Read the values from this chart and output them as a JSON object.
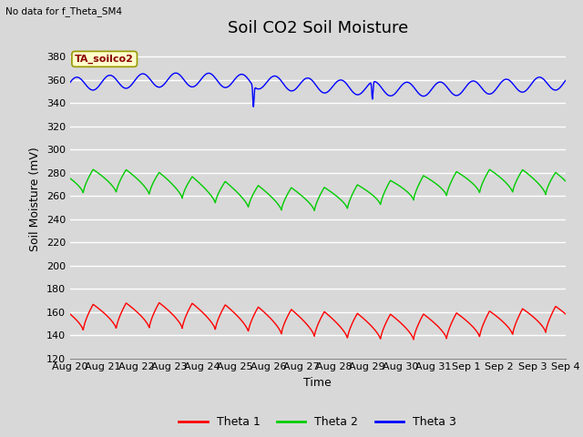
{
  "title": "Soil CO2 Soil Moisture",
  "no_data_text": "No data for f_Theta_SM4",
  "annotation_text": "TA_soilco2",
  "ylabel": "Soil Moisture (mV)",
  "xlabel": "Time",
  "ylim": [
    120,
    395
  ],
  "yticks": [
    120,
    140,
    160,
    180,
    200,
    220,
    240,
    260,
    280,
    300,
    320,
    340,
    360,
    380
  ],
  "x_tick_labels": [
    "Aug 20",
    "Aug 21",
    "Aug 22",
    "Aug 23",
    "Aug 24",
    "Aug 25",
    "Aug 26",
    "Aug 27",
    "Aug 28",
    "Aug 29",
    "Aug 30",
    "Aug 31",
    "Sep 1",
    "Sep 2",
    "Sep 3",
    "Sep 4"
  ],
  "background_color": "#d8d8d8",
  "plot_bg_color": "#d8d8d8",
  "grid_color": "#ffffff",
  "colors": {
    "theta1": "#ff0000",
    "theta2": "#00cc00",
    "theta3": "#0000ff"
  },
  "legend_labels": [
    "Theta 1",
    "Theta 2",
    "Theta 3"
  ],
  "n_days": 15,
  "theta1_base": 141,
  "theta1_amp": 22,
  "theta2_base": 255,
  "theta2_amp": 20,
  "theta3_base": 356,
  "theta3_small_amp": 6,
  "spike1_day": 5.55,
  "spike1_depth": 18,
  "spike2_day": 9.15,
  "spike2_depth": 15,
  "title_fontsize": 13,
  "axis_label_fontsize": 9,
  "tick_fontsize": 8
}
